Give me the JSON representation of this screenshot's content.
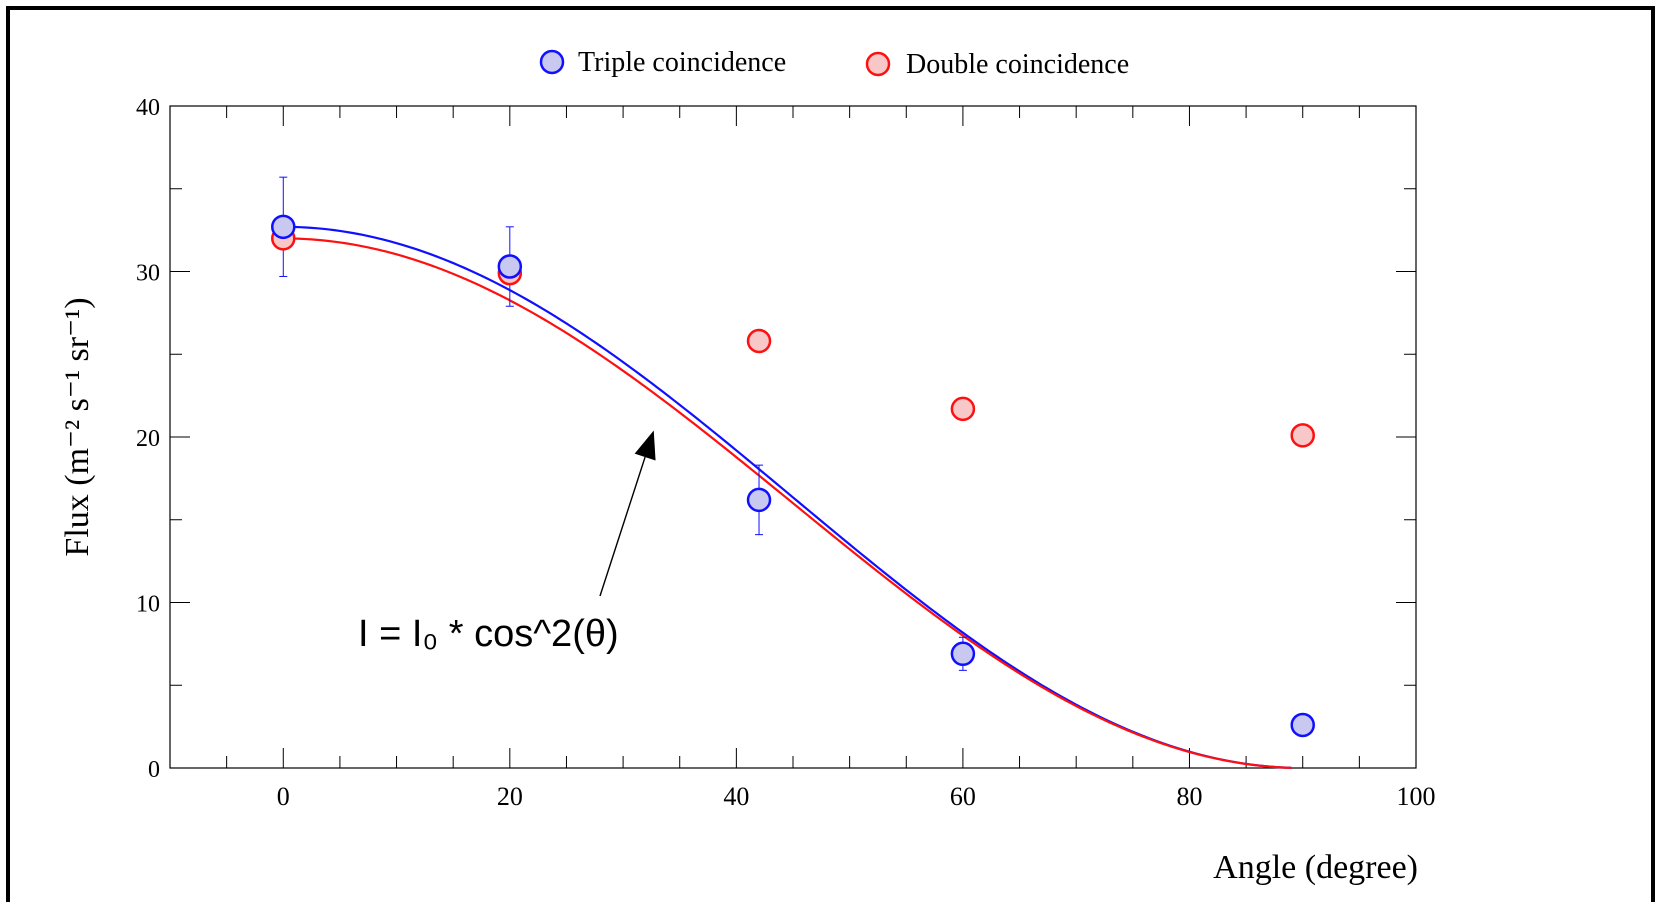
{
  "chart_data": {
    "type": "scatter",
    "xlabel": "Angle (degree)",
    "ylabel": "Flux (m⁻² s⁻¹ sr⁻¹)",
    "xlim": [
      -10,
      100
    ],
    "ylim": [
      0,
      40
    ],
    "xticks": [
      0,
      20,
      40,
      60,
      80,
      100
    ],
    "yticks": [
      0,
      10,
      20,
      30,
      40
    ],
    "grid": false,
    "legend": "top-center",
    "series": [
      {
        "name": "Triple coincidence",
        "marker_color": "#1010ff",
        "fill_color": "#c8c8f0",
        "points": [
          {
            "x": 0,
            "y": 32.7,
            "err": 3.0
          },
          {
            "x": 20,
            "y": 30.3,
            "err": 2.4
          },
          {
            "x": 42,
            "y": 16.2,
            "err": 2.1
          },
          {
            "x": 60,
            "y": 6.9,
            "err": 1.0
          },
          {
            "x": 90,
            "y": 2.6,
            "err": 0
          }
        ]
      },
      {
        "name": "Double coincidence",
        "marker_color": "#ff1010",
        "fill_color": "#f8c8c8",
        "points": [
          {
            "x": 0,
            "y": 32.0
          },
          {
            "x": 20,
            "y": 29.9
          },
          {
            "x": 42,
            "y": 25.8
          },
          {
            "x": 60,
            "y": 21.7
          },
          {
            "x": 90,
            "y": 20.1
          }
        ]
      }
    ],
    "fits": [
      {
        "series": "Triple coincidence",
        "model": "I0*cos^2(theta)",
        "I0": 32.7,
        "color": "#1010ff"
      },
      {
        "series": "Double coincidence",
        "model": "I0*cos^2(theta)",
        "I0": 32.0,
        "color": "#ff1010"
      }
    ],
    "annotation": {
      "text": "I = I₀ * cos^2(θ)",
      "arrow_to": {
        "x": 32,
        "y": 21
      }
    }
  }
}
